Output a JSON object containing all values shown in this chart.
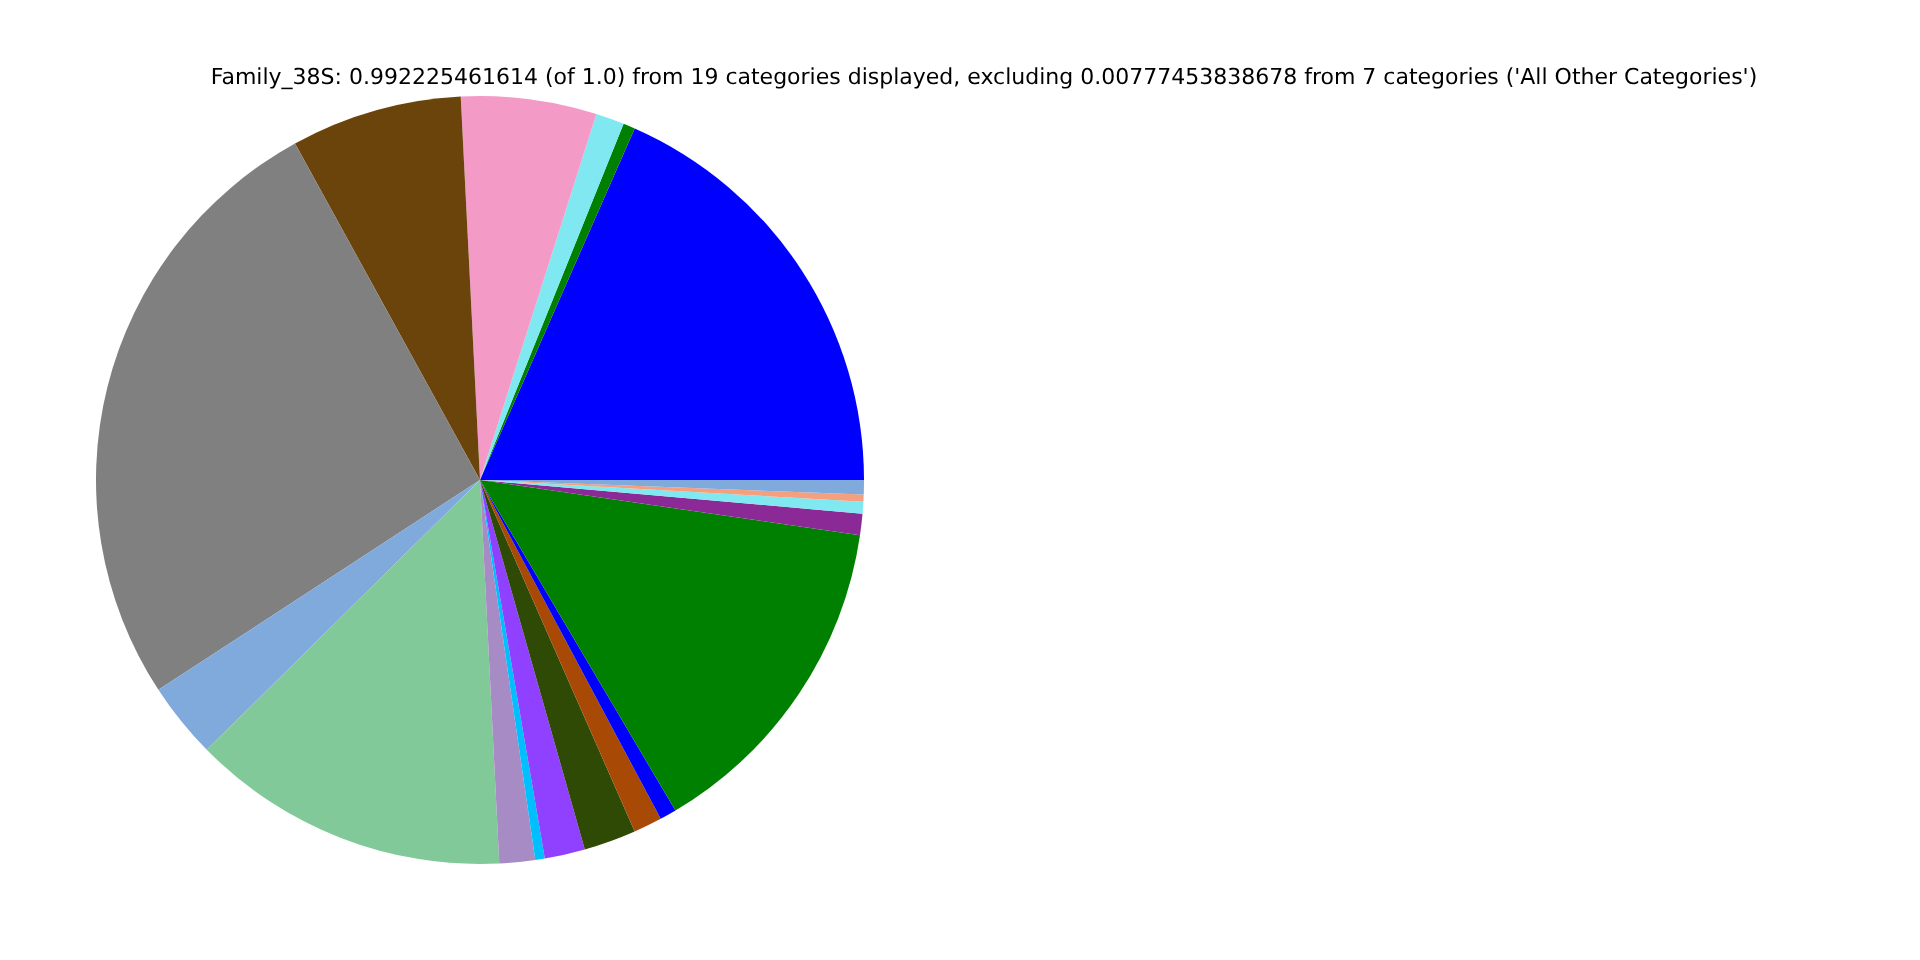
{
  "chart_data": {
    "type": "pie",
    "title": "Family_38S: 0.992225461614 (of 1.0) from 19 categories displayed, excluding 0.00777453838678 from 7 categories ('All Other Categories')",
    "categories": [
      null,
      null,
      null,
      null,
      null,
      null,
      null,
      null,
      null,
      null,
      null,
      null,
      null,
      null,
      null,
      null,
      null,
      null,
      null
    ],
    "values": [
      18.4,
      0.5,
      1.2,
      5.7,
      7.2,
      26.2,
      3.2,
      13.4,
      1.5,
      0.4,
      1.7,
      2.2,
      1.2,
      0.7,
      14.2,
      0.9,
      0.5,
      0.3,
      0.6
    ],
    "colors": [
      "#0000ff",
      "#008000",
      "#80e8f0",
      "#f49ac6",
      "#6b440c",
      "#808080",
      "#80aadc",
      "#82c99a",
      "#a68bc4",
      "#00bfff",
      "#9040ff",
      "#2e4a05",
      "#a84a06",
      "#0000ff",
      "#008000",
      "#8b2a96",
      "#80e8f0",
      "#f4a07e",
      "#80aadc"
    ]
  }
}
